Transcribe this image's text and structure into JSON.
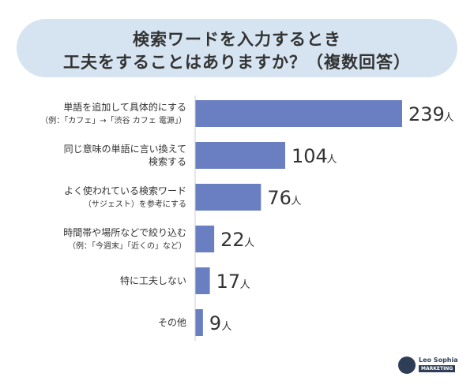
{
  "title": {
    "line1": "検索ワードを入力するとき",
    "line2": "工夫をすることはありますか？（複数回答）"
  },
  "colors": {
    "bar": "#6a7fc1",
    "title_bg": "#d6e4f1",
    "text": "#333333"
  },
  "chart_data": {
    "type": "bar",
    "orientation": "horizontal",
    "categories": [
      [
        "単語を追加して具体的にする",
        "（例：「カフェ」→「渋谷 カフェ 電源」）"
      ],
      [
        "同じ意味の単語に言い換えて",
        "検索する"
      ],
      [
        "よく使われている検索ワード",
        "（サジェスト）を参考にする"
      ],
      [
        "時間帯や場所などで絞り込む",
        "（例：「今週末」「近くの」など）"
      ],
      [
        "特に工夫しない"
      ],
      [
        "その他"
      ]
    ],
    "values": [
      239,
      104,
      76,
      22,
      17,
      9
    ],
    "value_suffix": "人",
    "xlim": [
      0,
      239
    ],
    "grid": false,
    "legend": "none"
  },
  "logo": {
    "name": "Leo Sophia",
    "sub": "MARKETING"
  }
}
